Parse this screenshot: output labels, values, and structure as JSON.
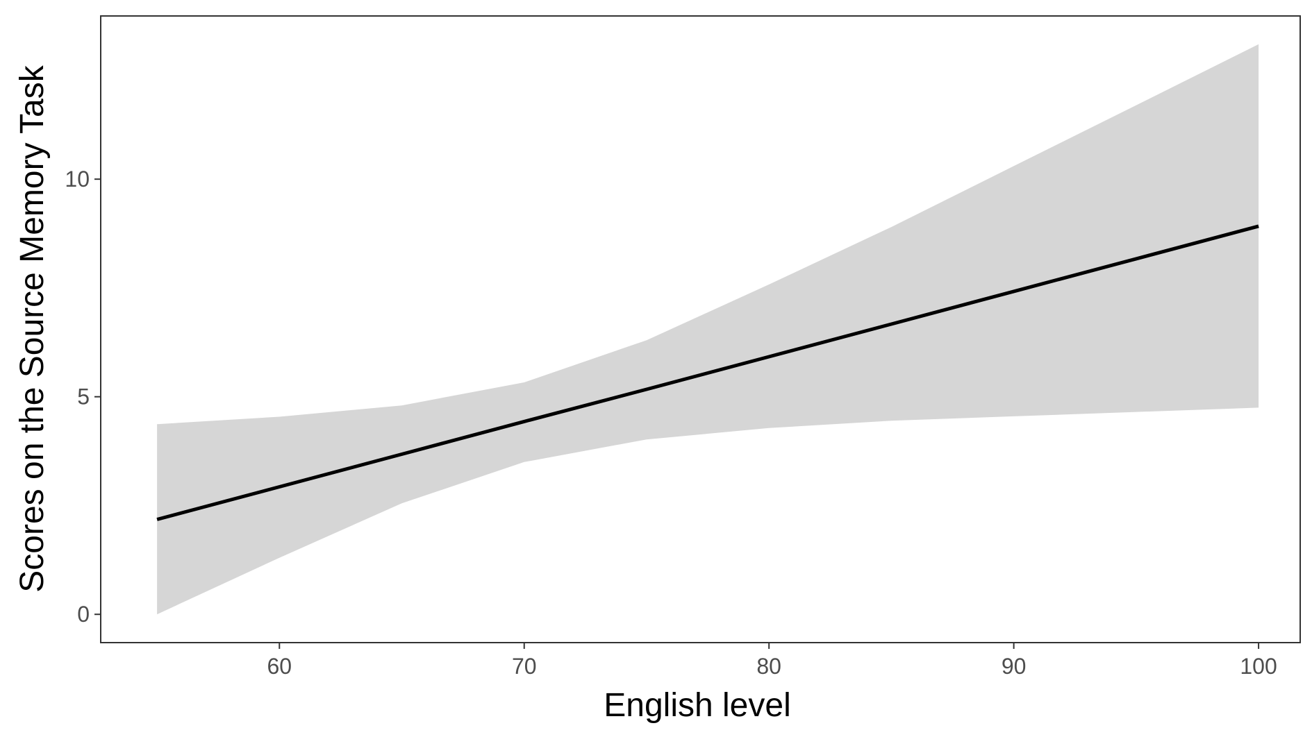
{
  "chart_data": {
    "type": "line",
    "title": "",
    "xlabel": "English level",
    "ylabel": "Scores on the Source Memory Task",
    "xlim": [
      52.7,
      101.7
    ],
    "ylim": [
      -0.65,
      13.75
    ],
    "x_ticks": [
      60,
      70,
      80,
      90,
      100
    ],
    "y_ticks": [
      0,
      5,
      10
    ],
    "grid": false,
    "legend": "none",
    "series": [
      {
        "x": [
          55,
          60,
          65,
          70,
          75,
          80,
          85,
          90,
          95,
          100
        ],
        "fit": [
          2.18,
          2.93,
          3.68,
          4.43,
          5.17,
          5.92,
          6.67,
          7.42,
          8.17,
          8.92
        ],
        "lower": [
          0.0,
          1.3,
          2.55,
          3.5,
          4.02,
          4.28,
          4.45,
          4.55,
          4.65,
          4.75
        ],
        "upper": [
          4.37,
          4.54,
          4.8,
          5.33,
          6.3,
          7.58,
          8.9,
          10.3,
          11.7,
          13.1
        ],
        "line_color": "#000000",
        "band_color": "#d6d6d6"
      }
    ]
  }
}
